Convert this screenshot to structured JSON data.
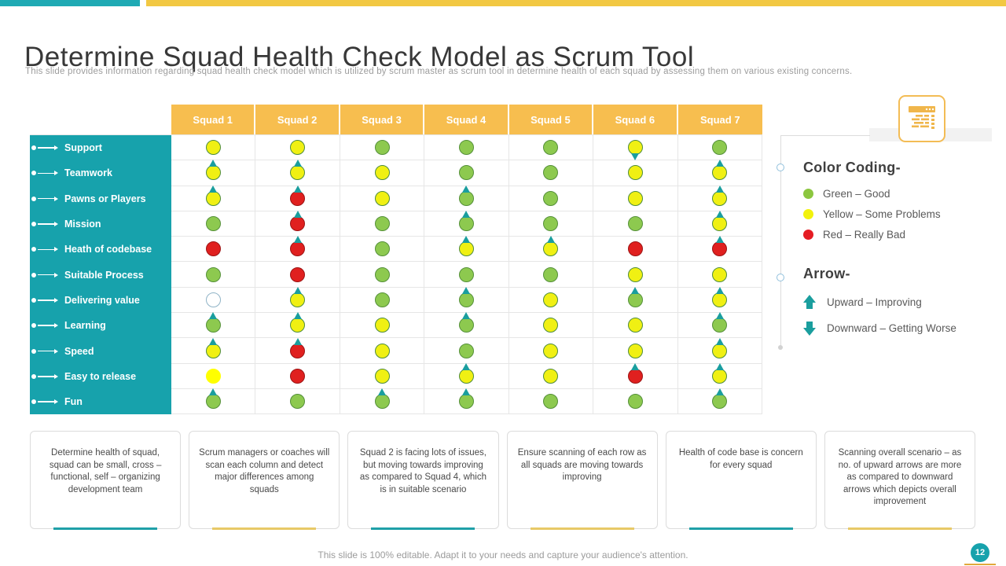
{
  "theme": {
    "teal-bar": "#1FAAB4",
    "amber-bar": "#F2C843",
    "teal-side": "#17A2AC",
    "amber-hdr": "#F7BE4F",
    "arrow": "#1A9E9E",
    "card-teal": "#1FA0A8",
    "card-amber": "#E8C967",
    "icon-amber": "#F0B64B"
  },
  "header": {
    "title": "Determine Squad Health Check Model as Scrum Tool",
    "subtitle": "This slide provides information regarding squad health check model which is utilized by scrum master as scrum tool in determine health of each squad by assessing them on various existing concerns."
  },
  "matrix": {
    "squads": [
      "Squad 1",
      "Squad 2",
      "Squad 3",
      "Squad 4",
      "Squad 5",
      "Squad 6",
      "Squad 7"
    ],
    "dot_colors": {
      "g": {
        "name": "green",
        "fill": "#8DC94F",
        "border": "#55903A"
      },
      "y": {
        "name": "yellow",
        "fill": "#F0F013",
        "border": "#4E8C3E"
      },
      "r": {
        "name": "red",
        "fill": "#E0201F",
        "border": "#9C1414"
      },
      "e": {
        "name": "empty",
        "fill": "#FFFFFF",
        "border": "#8FB3C6"
      },
      "Y": {
        "name": "bright-yellow",
        "fill": "#FFFF00",
        "border": "#FFFF00"
      }
    },
    "cell_code_legend": "first char = color key, '+' = upward arrow, '-' = downward arrow",
    "rows": [
      {
        "label": "Support",
        "cells": [
          "y",
          "y",
          "g",
          "g",
          "g",
          "y-",
          "g"
        ]
      },
      {
        "label": "Teamwork",
        "cells": [
          "y+",
          "y+",
          "y",
          "g",
          "g",
          "y",
          "y+"
        ]
      },
      {
        "label": "Pawns or Players",
        "cells": [
          "y+",
          "r+",
          "y",
          "g+",
          "g",
          "y",
          "y+"
        ]
      },
      {
        "label": "Mission",
        "cells": [
          "g",
          "r+",
          "g",
          "g+",
          "g",
          "g",
          "y+"
        ]
      },
      {
        "label": "Heath of codebase",
        "cells": [
          "r",
          "r+",
          "g",
          "y+",
          "y+",
          "r",
          "r+"
        ]
      },
      {
        "label": "Suitable Process",
        "cells": [
          "g",
          "r",
          "g",
          "g",
          "g",
          "y",
          "y"
        ]
      },
      {
        "label": "Delivering value",
        "cells": [
          "e",
          "y+",
          "g",
          "g+",
          "y",
          "g+",
          "y+"
        ]
      },
      {
        "label": "Learning",
        "cells": [
          "g+",
          "y+",
          "y",
          "g+",
          "y",
          "y",
          "g+"
        ]
      },
      {
        "label": "Speed",
        "cells": [
          "y+",
          "r+",
          "y",
          "g",
          "y",
          "y",
          "y+"
        ]
      },
      {
        "label": "Easy to release",
        "cells": [
          "Y",
          "r",
          "y",
          "y+",
          "y",
          "r+",
          "y+"
        ]
      },
      {
        "label": "Fun",
        "cells": [
          "g+",
          "g",
          "g+",
          "g+",
          "g",
          "g",
          "g+"
        ]
      }
    ]
  },
  "legend": {
    "color_heading": "Color Coding-",
    "color_items": [
      {
        "color": "#8CC63F",
        "label": "Green – Good"
      },
      {
        "color": "#F2F20C",
        "label": "Yellow – Some Problems"
      },
      {
        "color": "#E51C23",
        "label": "Red – Really Bad"
      }
    ],
    "arrow_heading": "Arrow-",
    "arrow_items": [
      {
        "direction": "up",
        "label": "Upward – Improving"
      },
      {
        "direction": "down",
        "label": "Downward – Getting Worse"
      }
    ]
  },
  "cards": [
    {
      "text": "Determine health of squad, squad can be small, cross – functional, self – organizing development team",
      "accent": "teal"
    },
    {
      "text": "Scrum managers or coaches will scan each column and detect major differences among squads",
      "accent": "amber"
    },
    {
      "text": "Squad 2 is facing lots of issues, but moving towards improving as compared to Squad 4, which is in suitable scenario",
      "accent": "teal"
    },
    {
      "text": "Ensure scanning of each row as all squads are moving towards improving",
      "accent": "amber"
    },
    {
      "text": "Health of code base is concern for every squad",
      "accent": "teal"
    },
    {
      "text": "Scanning overall scenario – as no. of upward arrows are more as compared to downward arrows which depicts overall improvement",
      "accent": "amber"
    }
  ],
  "footer": {
    "text": "This slide is 100% editable. Adapt it to your needs and capture your audience's attention.",
    "page": "12"
  }
}
